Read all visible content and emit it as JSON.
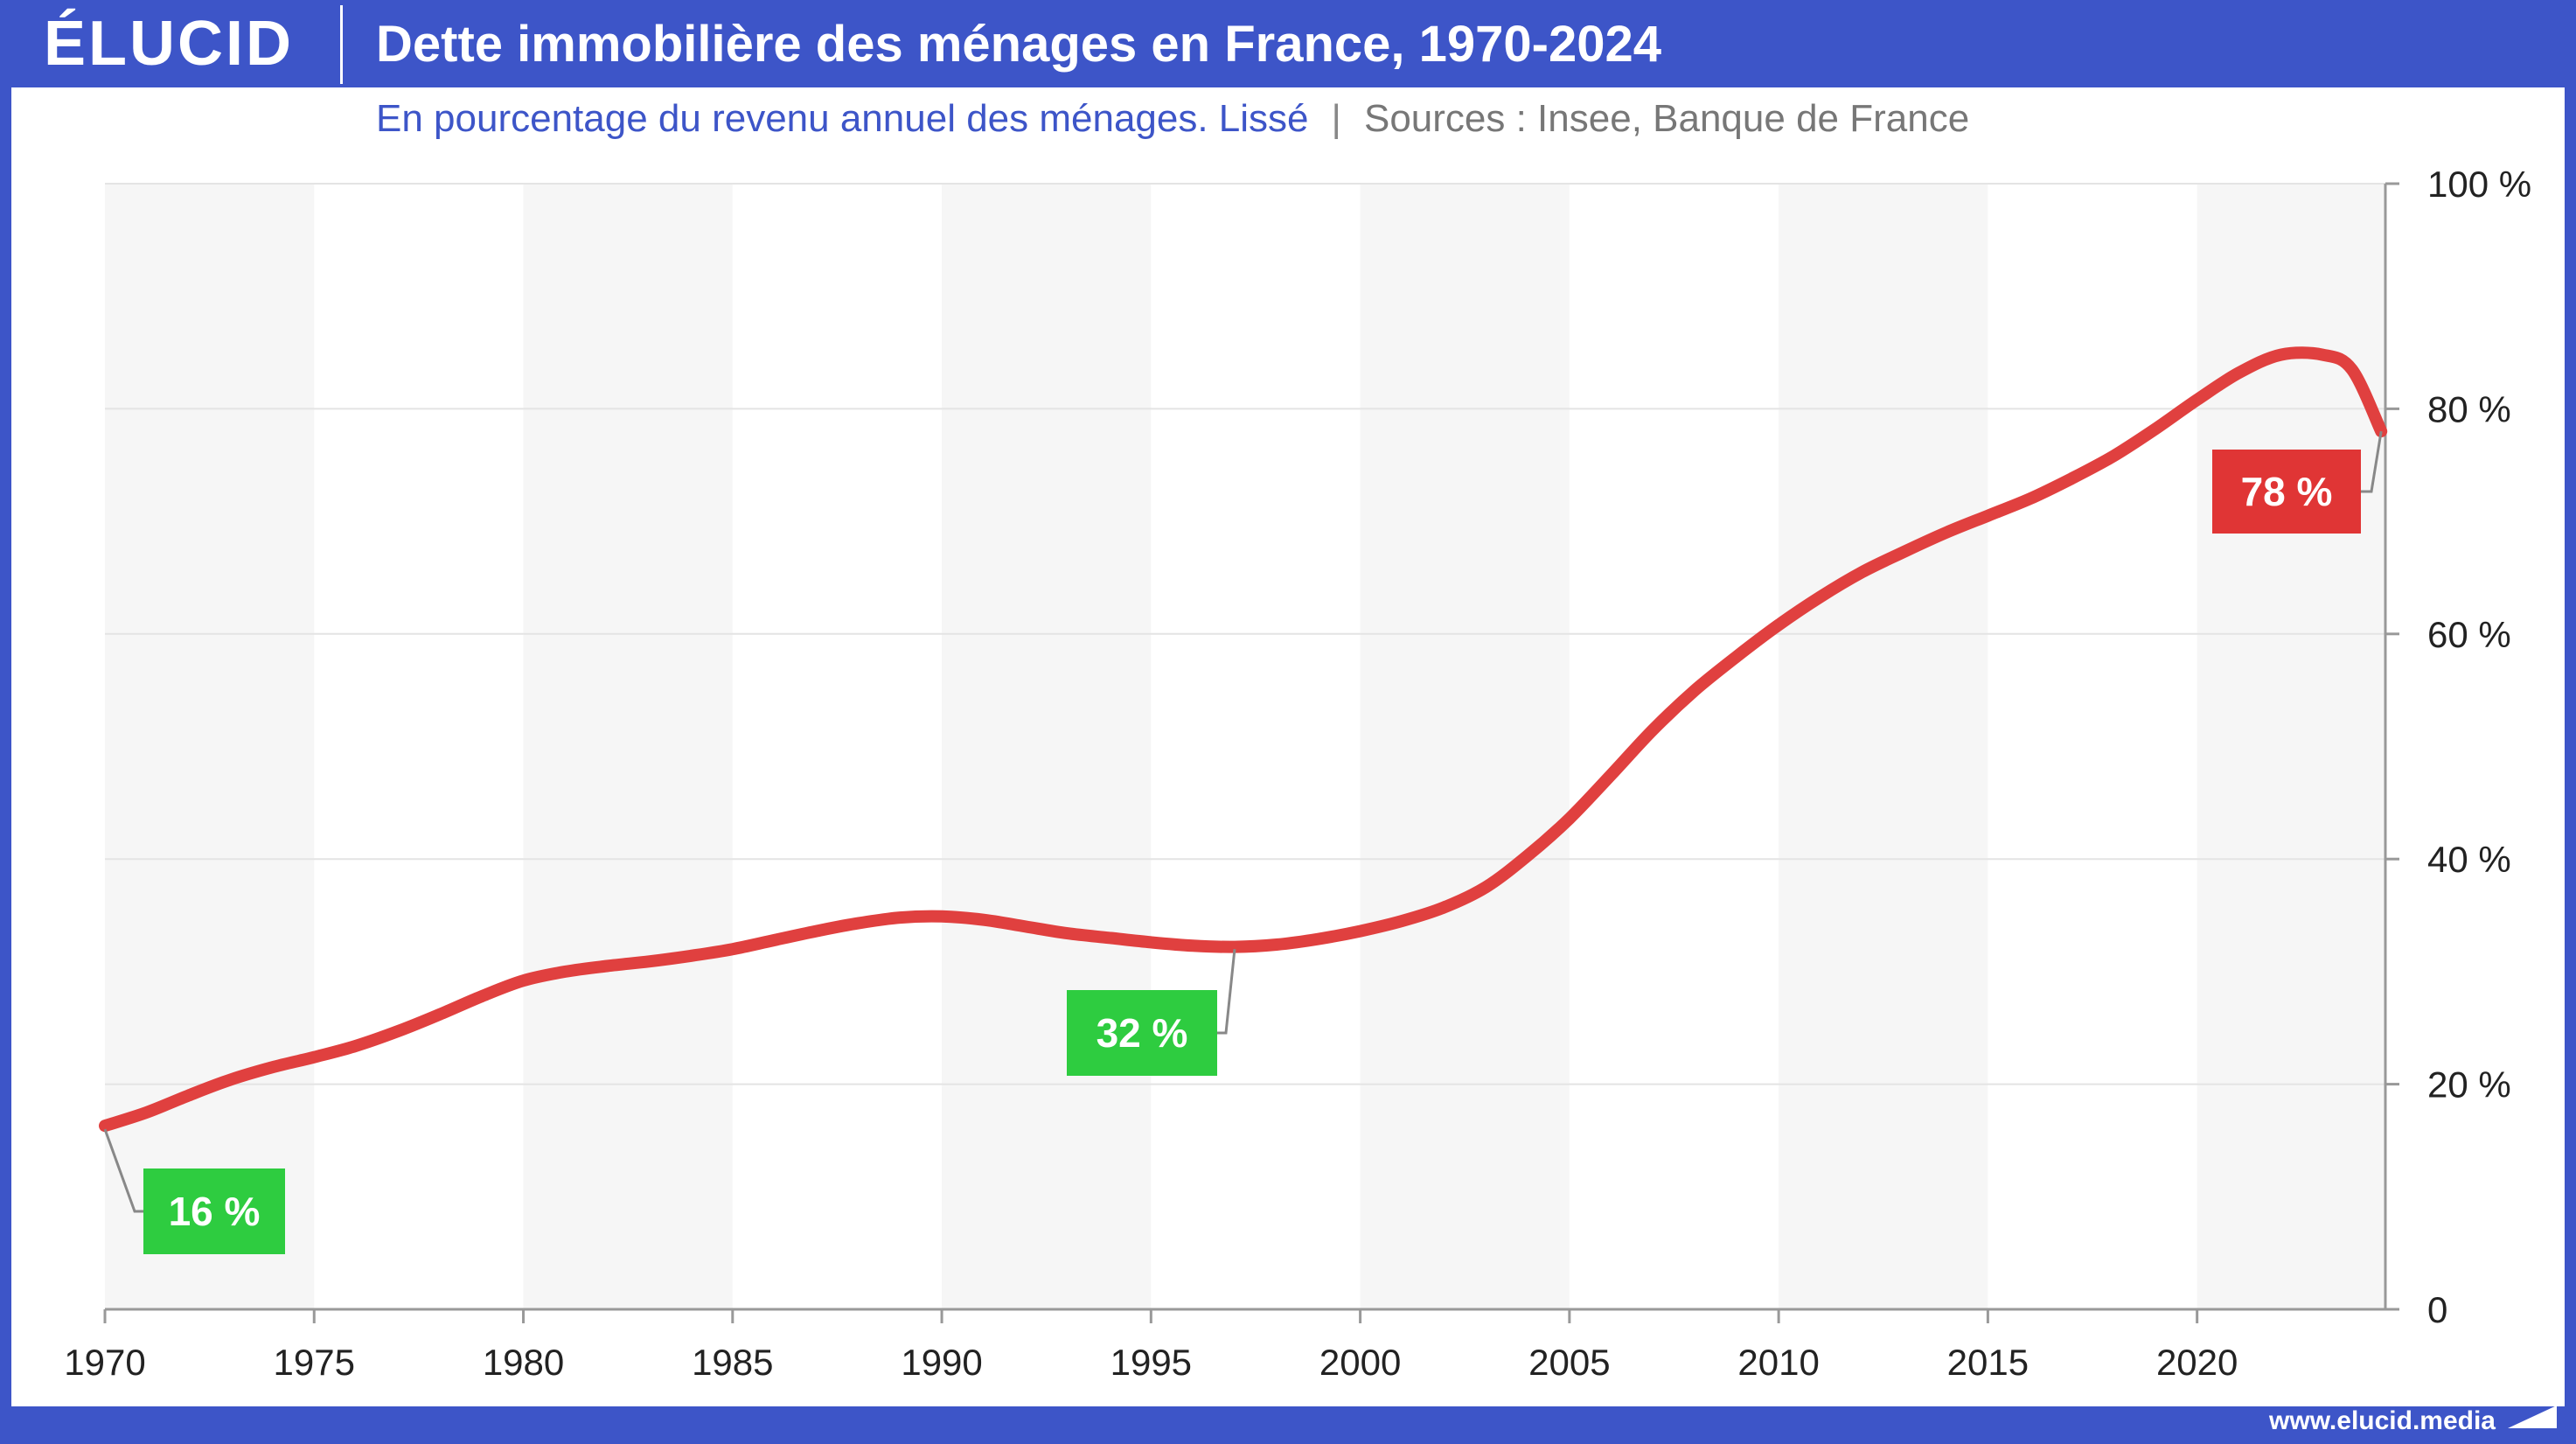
{
  "header": {
    "logo": "ÉLUCID",
    "title": "Dette immobilière des ménages en France, 1970-2024",
    "subtitle": "En pourcentage du revenu annuel des ménages. Lissé",
    "separator": "|",
    "sources": "Sources : Insee, Banque de France"
  },
  "footer": {
    "url": "www.elucid.media"
  },
  "colors": {
    "brand": "#3d55c8",
    "line": "#e0403f",
    "low_badge": "#2ecc40",
    "high_badge": "#e03535",
    "band": "#f6f6f6",
    "grid": "#e4e4e4"
  },
  "chart_data": {
    "type": "line",
    "title": "Dette immobilière des ménages en France, 1970-2024",
    "subtitle": "En pourcentage du revenu annuel des ménages. Lissé",
    "xlim": [
      1970,
      2024.5
    ],
    "ylim": [
      0,
      100
    ],
    "x_ticks": [
      1970,
      1975,
      1980,
      1985,
      1990,
      1995,
      2000,
      2005,
      2010,
      2015,
      2020
    ],
    "y_ticks": [
      0,
      20,
      40,
      60,
      80,
      100
    ],
    "y_tick_labels": [
      "0",
      "20 %",
      "40 %",
      "60 %",
      "80 %",
      "100 %"
    ],
    "y_axis_side": "right",
    "grid": true,
    "alternating_bands": true,
    "series": [
      {
        "x": [
          1970,
          1971,
          1972,
          1973,
          1974,
          1975,
          1976,
          1977,
          1978,
          1979,
          1980,
          1981,
          1982,
          1983,
          1984,
          1985,
          1986,
          1987,
          1988,
          1989,
          1990,
          1991,
          1992,
          1993,
          1994,
          1995,
          1996,
          1997,
          1998,
          1999,
          2000,
          2001,
          2002,
          2003,
          2004,
          2005,
          2006,
          2007,
          2008,
          2009,
          2010,
          2011,
          2012,
          2013,
          2014,
          2015,
          2016,
          2017,
          2018,
          2019,
          2020,
          2021,
          2022,
          2023,
          2023.7,
          2024.4
        ],
        "y": [
          16.3,
          17.5,
          19.0,
          20.4,
          21.5,
          22.4,
          23.4,
          24.7,
          26.2,
          27.8,
          29.2,
          30.0,
          30.5,
          30.9,
          31.4,
          32.0,
          32.8,
          33.6,
          34.3,
          34.8,
          34.9,
          34.6,
          34.0,
          33.4,
          33.0,
          32.6,
          32.3,
          32.2,
          32.4,
          32.9,
          33.6,
          34.5,
          35.7,
          37.5,
          40.3,
          43.6,
          47.5,
          51.5,
          55.0,
          58.0,
          60.8,
          63.3,
          65.5,
          67.3,
          69.0,
          70.5,
          72.0,
          73.8,
          75.8,
          78.2,
          80.8,
          83.2,
          84.8,
          84.8,
          83.5,
          78.0
        ]
      }
    ],
    "annotations": [
      {
        "label": "16 %",
        "x": 1970,
        "y": 16,
        "style": "low"
      },
      {
        "label": "32 %",
        "x": 1997,
        "y": 32,
        "style": "low"
      },
      {
        "label": "78 %",
        "x": 2024.4,
        "y": 78,
        "style": "high"
      }
    ]
  }
}
